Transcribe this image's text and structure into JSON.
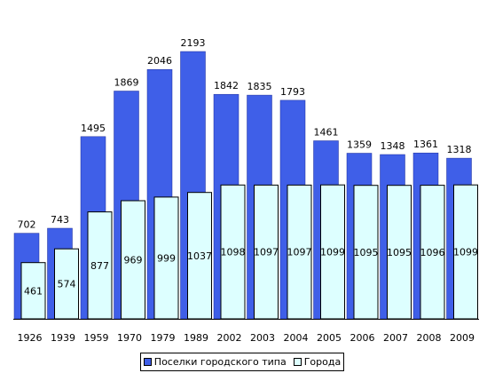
{
  "chart_data": {
    "type": "bar",
    "categories": [
      "1926",
      "1939",
      "1959",
      "1970",
      "1979",
      "1989",
      "2002",
      "2003",
      "2004",
      "2005",
      "2006",
      "2007",
      "2008",
      "2009"
    ],
    "series": [
      {
        "name": "Поселки городского типа",
        "values": [
          702,
          743,
          1495,
          1869,
          2046,
          2193,
          1842,
          1835,
          1793,
          1461,
          1359,
          1348,
          1361,
          1318
        ],
        "color": "#3f5fe8",
        "label_position": "above"
      },
      {
        "name": "Города",
        "values": [
          461,
          574,
          877,
          969,
          999,
          1037,
          1098,
          1097,
          1097,
          1099,
          1095,
          1095,
          1096,
          1099
        ],
        "color": "#ddffff",
        "label_position": "inside"
      }
    ],
    "overlap": true,
    "ylim": [
      0,
      2193
    ],
    "grid": false,
    "legend": "bottom",
    "title": "",
    "xlabel": "",
    "ylabel": ""
  }
}
